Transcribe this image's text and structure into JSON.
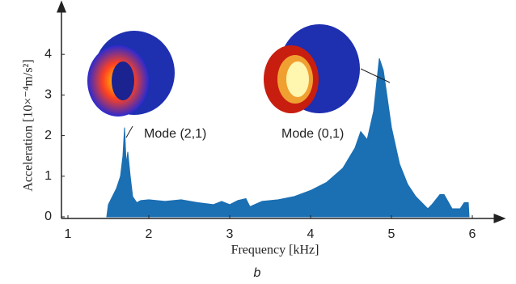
{
  "chart_data": {
    "type": "area",
    "x_label": "Frequency [kHz]",
    "y_label": "Acceleration [10×⁻⁴m/s²]",
    "subtitle": "b",
    "annotations": [
      "Mode (2,1)",
      "Mode (0,1)"
    ],
    "color": "#1b6fb3",
    "xlim": [
      1,
      6.25
    ],
    "ylim": [
      0,
      4.9
    ],
    "xticks": [
      1,
      2,
      3,
      4,
      5,
      6
    ],
    "yticks": [
      0,
      1,
      2,
      3,
      4
    ],
    "x": [
      1.48,
      1.5,
      1.55,
      1.6,
      1.65,
      1.68,
      1.7,
      1.72,
      1.74,
      1.77,
      1.8,
      1.85,
      1.9,
      2.0,
      2.2,
      2.4,
      2.6,
      2.8,
      2.9,
      3.0,
      3.1,
      3.2,
      3.25,
      3.4,
      3.6,
      3.8,
      4.0,
      4.2,
      4.4,
      4.55,
      4.62,
      4.7,
      4.78,
      4.85,
      4.9,
      5.0,
      5.1,
      5.2,
      5.3,
      5.45,
      5.5,
      5.6,
      5.65,
      5.75,
      5.85,
      5.9,
      5.95,
      5.96
    ],
    "values": [
      0,
      0.3,
      0.5,
      0.7,
      1.0,
      1.5,
      2.2,
      1.3,
      1.6,
      1.0,
      0.5,
      0.35,
      0.4,
      0.42,
      0.38,
      0.42,
      0.35,
      0.3,
      0.38,
      0.3,
      0.4,
      0.45,
      0.25,
      0.38,
      0.42,
      0.5,
      0.65,
      0.85,
      1.2,
      1.7,
      2.1,
      1.9,
      2.6,
      3.9,
      3.6,
      2.2,
      1.3,
      0.8,
      0.5,
      0.2,
      0.3,
      0.55,
      0.55,
      0.2,
      0.2,
      0.35,
      0.35,
      0
    ]
  }
}
